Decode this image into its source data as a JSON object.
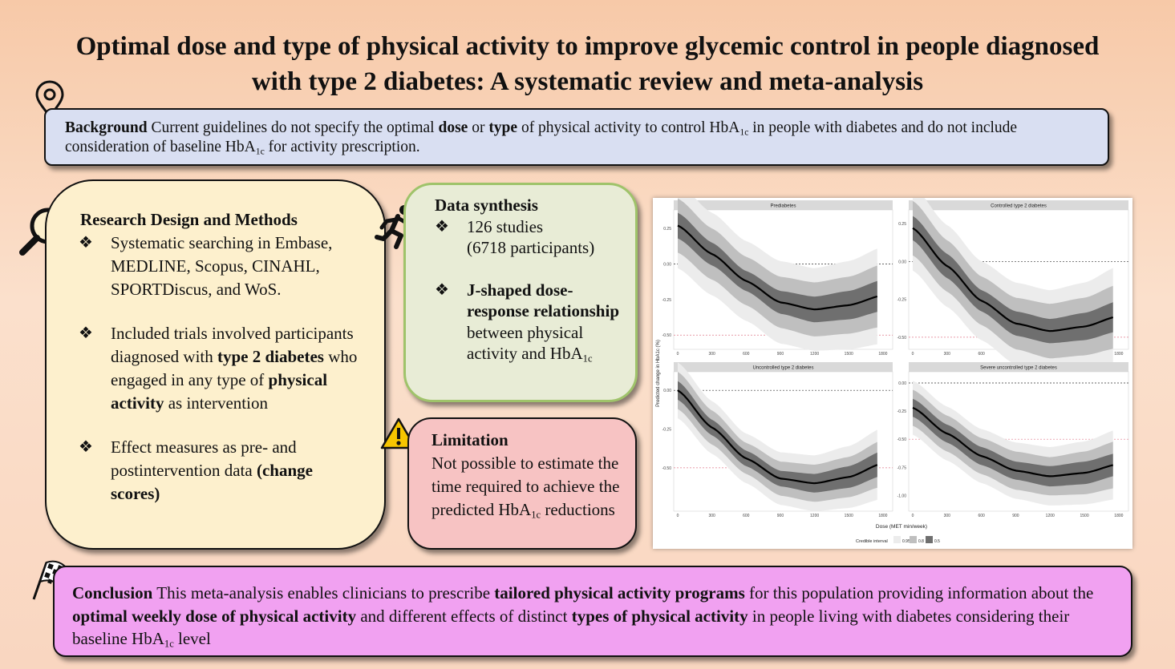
{
  "title": {
    "line1": "Optimal dose and type of physical activity to improve glycemic control in people diagnosed",
    "line2": "with type 2 diabetes: A systematic review and meta-analysis"
  },
  "background": {
    "heading": "Background",
    "t1": " Current guidelines do not specify the optimal ",
    "b1": "dose",
    "t2": " or ",
    "b2": "type",
    "t3": " of physical activity to control HbA",
    "sub1": "1c",
    "t4": " in people with diabetes and do not include consideration of baseline HbA",
    "sub2": "1c",
    "t5": " for activity prescription."
  },
  "methods": {
    "heading": "Research Design and Methods",
    "bullet1": "Systematic searching in Embase, MEDLINE, Scopus, CINAHL, SPORTDiscus, and WoS.",
    "b2_t1": "Included trials involved participants diagnosed with ",
    "b2_b1": "type 2 diabetes",
    "b2_t2": " who engaged in any type of ",
    "b2_b2": "physical activity",
    "b2_t3": " as intervention",
    "b3_t1": "Effect measures as pre- and postintervention data ",
    "b3_b1": "(change scores)",
    "bullet_symbol": "❖"
  },
  "synthesis": {
    "heading": "Data synthesis",
    "b1_line1": "126 studies",
    "b1_line2": "(6718 participants)",
    "b2_bold": "J-shaped dose-response relationship",
    "b2_text": " between physical activity and HbA",
    "b2_sub": "1c"
  },
  "limitation": {
    "heading": "Limitation",
    "text": "Not possible to estimate the time required to achieve the predicted HbA",
    "sub": "1c",
    "text2": " reductions"
  },
  "conclusion": {
    "heading": "Conclusion",
    "t1": " This meta-analysis enables clinicians to prescribe ",
    "b1": "tailored physical activity programs",
    "t2": " for this population providing information about the ",
    "b2": "optimal weekly dose of physical activity",
    "t3": " and different effects of distinct ",
    "b3": "types of physical activity",
    "t4": " in people living with diabetes considering their baseline HbA",
    "sub": "1c",
    "t5": " level"
  },
  "chart_data": {
    "type": "line",
    "ylabel": "Predicted change in HbA1c (%)",
    "xlabel": "Dose (MET min/week)",
    "legend_title": "Credible interval",
    "legend_labels": [
      "0.95",
      "0.8",
      "0.5"
    ],
    "x_ticks": [
      0,
      300,
      600,
      900,
      1200,
      1500,
      1800
    ],
    "panels": [
      {
        "name": "Prediabetes",
        "ylim": [
          -0.6,
          0.38
        ],
        "yticks": [
          0.25,
          0.0,
          -0.25,
          -0.5
        ],
        "ref_line": -0.5,
        "x": [
          0,
          300,
          600,
          900,
          1200,
          1500,
          1800
        ],
        "mean": [
          0.27,
          0.07,
          -0.12,
          -0.27,
          -0.32,
          -0.29,
          -0.22
        ],
        "ci95": [
          0.3,
          0.29,
          0.28,
          0.29,
          0.29,
          0.31,
          0.34
        ],
        "ci80": [
          0.19,
          0.18,
          0.17,
          0.18,
          0.19,
          0.2,
          0.22
        ],
        "ci50": [
          0.09,
          0.08,
          0.07,
          0.08,
          0.09,
          0.1,
          0.11
        ]
      },
      {
        "name": "Controlled type 2 diabetes",
        "ylim": [
          -0.58,
          0.34
        ],
        "yticks": [
          0.25,
          0.0,
          -0.25,
          -0.5
        ],
        "ref_line": -0.5,
        "x": [
          0,
          300,
          600,
          900,
          1200,
          1500,
          1800
        ],
        "mean": [
          0.22,
          -0.03,
          -0.26,
          -0.41,
          -0.46,
          -0.43,
          -0.36
        ],
        "ci95": [
          0.28,
          0.27,
          0.26,
          0.27,
          0.27,
          0.29,
          0.33
        ],
        "ci80": [
          0.18,
          0.17,
          0.16,
          0.17,
          0.18,
          0.19,
          0.21
        ],
        "ci50": [
          0.08,
          0.08,
          0.07,
          0.08,
          0.08,
          0.09,
          0.1
        ]
      },
      {
        "name": "Uncontrolled type 2 diabetes",
        "ylim": [
          -0.78,
          0.12
        ],
        "yticks": [
          0.0,
          -0.25,
          -0.5
        ],
        "ref_line": -0.5,
        "x": [
          0,
          300,
          600,
          900,
          1200,
          1500,
          1800
        ],
        "mean": [
          0.0,
          -0.24,
          -0.44,
          -0.57,
          -0.6,
          -0.56,
          -0.47
        ],
        "ci95": [
          0.18,
          0.17,
          0.16,
          0.17,
          0.18,
          0.2,
          0.23
        ],
        "ci80": [
          0.12,
          0.11,
          0.1,
          0.11,
          0.12,
          0.13,
          0.15
        ],
        "ci50": [
          0.06,
          0.05,
          0.05,
          0.05,
          0.06,
          0.07,
          0.08
        ]
      },
      {
        "name": "Severe uncontrolled type 2 diabetes",
        "ylim": [
          -1.14,
          0.1
        ],
        "yticks": [
          0.0,
          -0.25,
          -0.5,
          -0.75,
          -1.0
        ],
        "ref_line": -0.5,
        "x": [
          0,
          300,
          600,
          900,
          1200,
          1500,
          1800
        ],
        "mean": [
          -0.22,
          -0.45,
          -0.65,
          -0.78,
          -0.83,
          -0.8,
          -0.72
        ],
        "ci95": [
          0.24,
          0.24,
          0.24,
          0.25,
          0.26,
          0.28,
          0.31
        ],
        "ci80": [
          0.16,
          0.16,
          0.16,
          0.17,
          0.17,
          0.19,
          0.21
        ],
        "ci50": [
          0.08,
          0.08,
          0.08,
          0.08,
          0.09,
          0.1,
          0.1
        ]
      }
    ]
  }
}
